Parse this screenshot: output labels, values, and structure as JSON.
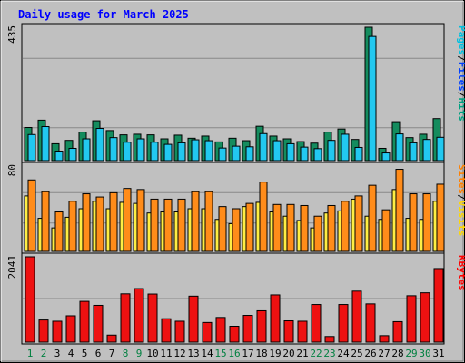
{
  "chart_data": {
    "type": "bar",
    "title": "Daily usage for March 2025",
    "categories": [
      "1",
      "2",
      "3",
      "4",
      "5",
      "6",
      "7",
      "8",
      "9",
      "10",
      "11",
      "12",
      "13",
      "14",
      "15",
      "16",
      "17",
      "18",
      "19",
      "20",
      "21",
      "22",
      "23",
      "24",
      "25",
      "26",
      "27",
      "28",
      "29",
      "30",
      "31"
    ],
    "weekend_days": [
      "1",
      "2",
      "8",
      "9",
      "15",
      "16",
      "22",
      "23",
      "29",
      "30"
    ],
    "panels": [
      {
        "id": "pages-files-hits",
        "max_label": "435",
        "ymax": 435,
        "legend": [
          {
            "label": "Pages",
            "color": "#00c0e0"
          },
          {
            "label": "Files",
            "color": "#0040ff"
          },
          {
            "label": "Hits",
            "color": "#00a080"
          }
        ],
        "series": [
          {
            "name": "Hits",
            "color": "#148c5e",
            "values": [
              108,
              132,
              55,
              66,
              93,
              130,
              98,
              84,
              86,
              84,
              71,
              83,
              73,
              80,
              61,
              73,
              65,
              112,
              80,
              71,
              62,
              57,
              93,
              103,
              69,
              435,
              40,
              127,
              75,
              86,
              137
            ]
          },
          {
            "name": "Files",
            "color": "#22c8f0",
            "values": [
              85,
              111,
              31,
              40,
              71,
              105,
              75,
              60,
              71,
              60,
              53,
              58,
              68,
              65,
              41,
              47,
              45,
              88,
              65,
              55,
              44,
              39,
              66,
              86,
              43,
              405,
              25,
              87,
              58,
              69,
              76
            ]
          }
        ]
      },
      {
        "id": "sites-visits",
        "max_label": "80",
        "ymax": 80,
        "legend": [
          {
            "label": "Sites",
            "color": "#ff8000"
          },
          {
            "label": "Visits",
            "color": "#ffd700"
          }
        ],
        "series": [
          {
            "name": "Visits",
            "color": "#ffee44",
            "values": [
              52,
              31,
              22,
              32,
              40,
              47,
              40,
              46,
              45,
              36,
              37,
              37,
              40,
              40,
              30,
              26,
              42,
              46,
              37,
              33,
              29,
              22,
              36,
              38,
              49,
              33,
              30,
              58,
              31,
              30,
              47
            ]
          },
          {
            "name": "Sites",
            "color": "#ff8c1a",
            "values": [
              67,
              56,
              37,
              47,
              54,
              51,
              55,
              59,
              58,
              49,
              49,
              49,
              56,
              56,
              42,
              40,
              45,
              65,
              44,
              44,
              43,
              33,
              43,
              47,
              52,
              62,
              39,
              77,
              54,
              54,
              63
            ]
          }
        ]
      },
      {
        "id": "kbytes",
        "max_label": "2041",
        "ymax": 2041,
        "legend": [
          {
            "label": "KBytes",
            "color": "#ff0000"
          }
        ],
        "series": [
          {
            "name": "KBytes",
            "color": "#ee1111",
            "values": [
              2041,
              530,
              500,
              630,
              975,
              880,
              168,
              1155,
              1280,
              1150,
              560,
              500,
              1100,
              470,
              590,
              380,
              640,
              750,
              1130,
              510,
              500,
              900,
              135,
              900,
              1220,
              915,
              155,
              490,
              1110,
              1180,
              1760
            ]
          }
        ]
      }
    ]
  }
}
